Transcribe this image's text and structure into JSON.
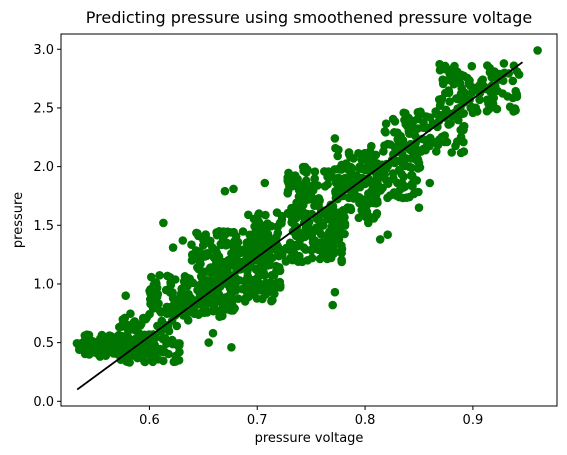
{
  "chart_data": {
    "type": "scatter",
    "title": "Predicting pressure using smoothened pressure voltage",
    "xlabel": "pressure voltage",
    "ylabel": "pressure",
    "xlim": [
      0.518,
      0.978
    ],
    "ylim": [
      -0.04,
      3.13
    ],
    "xticks": [
      0.6,
      0.7,
      0.8,
      0.9
    ],
    "xtick_labels": [
      "0.6",
      "0.7",
      "0.8",
      "0.9"
    ],
    "yticks": [
      0.0,
      0.5,
      1.0,
      1.5,
      2.0,
      2.5,
      3.0
    ],
    "ytick_labels": [
      "0.0",
      "0.5",
      "1.0",
      "1.5",
      "2.0",
      "2.5",
      "3.0"
    ],
    "grid": false,
    "legend": "none",
    "colors": {
      "points": "#007500",
      "line": "#000000"
    },
    "series": [
      {
        "kind": "scatter",
        "clusters": [
          {
            "x": [
              0.531,
              0.605
            ],
            "y": [
              0.38,
              0.57
            ],
            "n": 110
          },
          {
            "x": [
              0.572,
              0.628
            ],
            "y": [
              0.33,
              0.75
            ],
            "n": 90
          },
          {
            "x": [
              0.6,
              0.68
            ],
            "y": [
              0.72,
              1.08
            ],
            "n": 140
          },
          {
            "x": [
              0.645,
              0.722
            ],
            "y": [
              0.85,
              1.2
            ],
            "n": 110
          },
          {
            "x": [
              0.638,
              0.712
            ],
            "y": [
              1.1,
              1.45
            ],
            "n": 110
          },
          {
            "x": [
              0.69,
              0.782
            ],
            "y": [
              1.18,
              1.62
            ],
            "n": 200
          },
          {
            "x": [
              0.726,
              0.812
            ],
            "y": [
              1.55,
              2.0
            ],
            "n": 150
          },
          {
            "x": [
              0.772,
              0.852
            ],
            "y": [
              1.72,
              2.18
            ],
            "n": 130
          },
          {
            "x": [
              0.818,
              0.892
            ],
            "y": [
              2.1,
              2.48
            ],
            "n": 110
          },
          {
            "x": [
              0.868,
              0.945
            ],
            "y": [
              2.45,
              2.88
            ],
            "n": 100
          }
        ],
        "points": [
          [
            0.96,
            2.99
          ],
          [
            0.883,
            2.79
          ],
          [
            0.937,
            2.73
          ],
          [
            0.889,
            2.62
          ],
          [
            0.915,
            2.49
          ],
          [
            0.904,
            2.47
          ],
          [
            0.876,
            2.21
          ],
          [
            0.856,
            2.14
          ],
          [
            0.772,
            2.24
          ],
          [
            0.843,
            2.17
          ],
          [
            0.817,
            2.13
          ],
          [
            0.834,
            2.06
          ],
          [
            0.85,
            2.03
          ],
          [
            0.86,
            1.86
          ],
          [
            0.85,
            1.65
          ],
          [
            0.841,
            1.74
          ],
          [
            0.821,
            1.42
          ],
          [
            0.814,
            1.38
          ],
          [
            0.803,
            1.52
          ],
          [
            0.707,
            1.86
          ],
          [
            0.678,
            1.81
          ],
          [
            0.67,
            1.79
          ],
          [
            0.776,
            1.58
          ],
          [
            0.744,
            1.4
          ],
          [
            0.613,
            1.52
          ],
          [
            0.622,
            1.31
          ],
          [
            0.631,
            1.37
          ],
          [
            0.772,
            0.93
          ],
          [
            0.77,
            0.82
          ],
          [
            0.717,
            0.97
          ],
          [
            0.708,
            0.91
          ],
          [
            0.692,
            0.89
          ],
          [
            0.64,
            0.76
          ],
          [
            0.636,
            0.69
          ],
          [
            0.659,
            0.58
          ],
          [
            0.676,
            0.46
          ],
          [
            0.655,
            0.5
          ],
          [
            0.535,
            0.44
          ],
          [
            0.548,
            0.51
          ],
          [
            0.563,
            0.56
          ],
          [
            0.586,
            0.44
          ],
          [
            0.578,
            0.9
          ],
          [
            0.601,
            0.87
          ],
          [
            0.603,
            0.39
          ],
          [
            0.612,
            0.42
          ],
          [
            0.719,
            1.32
          ],
          [
            0.701,
            1.49
          ],
          [
            0.756,
            1.84
          ],
          [
            0.79,
            1.73
          ],
          [
            0.81,
            2.01
          ],
          [
            0.881,
            2.43
          ],
          [
            0.897,
            2.57
          ],
          [
            0.92,
            2.81
          ],
          [
            0.938,
            2.86
          ]
        ]
      },
      {
        "kind": "line",
        "x": [
          0.533,
          0.946
        ],
        "y": [
          0.1,
          2.89
        ]
      }
    ]
  }
}
